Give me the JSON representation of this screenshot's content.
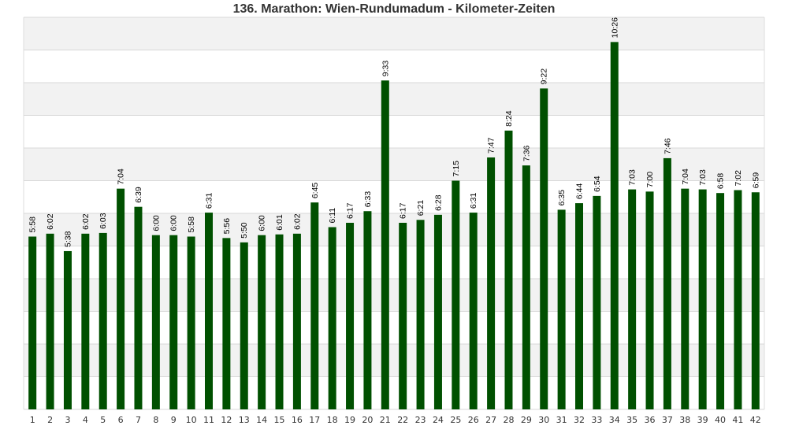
{
  "chart_data": {
    "type": "bar",
    "title": "136. Marathon: Wien-Rundumadum - Kilometer-Zeiten",
    "xlabel": "",
    "ylabel": "",
    "categories": [
      "1",
      "2",
      "3",
      "4",
      "5",
      "6",
      "7",
      "8",
      "9",
      "10",
      "11",
      "12",
      "13",
      "14",
      "15",
      "16",
      "17",
      "18",
      "19",
      "20",
      "21",
      "22",
      "23",
      "24",
      "25",
      "26",
      "27",
      "28",
      "29",
      "30",
      "31",
      "32",
      "33",
      "34",
      "35",
      "36",
      "37",
      "38",
      "39",
      "40",
      "41",
      "42"
    ],
    "labels": [
      "5:58",
      "6:02",
      "5:38",
      "6:02",
      "6:03",
      "7:04",
      "6:39",
      "6:00",
      "6:00",
      "5:58",
      "6:31",
      "5:56",
      "5:50",
      "6:00",
      "6:01",
      "6:02",
      "6:45",
      "6:11",
      "6:17",
      "6:33",
      "9:33",
      "6:17",
      "6:21",
      "6:28",
      "7:15",
      "6:31",
      "7:47",
      "8:24",
      "7:36",
      "9:22",
      "6:35",
      "6:44",
      "6:54",
      "10:26",
      "7:03",
      "7:00",
      "7:46",
      "7:04",
      "7:03",
      "6:58",
      "7:02",
      "6:59"
    ],
    "values": [
      358,
      362,
      338,
      362,
      363,
      424,
      399,
      360,
      360,
      358,
      391,
      356,
      350,
      360,
      361,
      362,
      405,
      371,
      377,
      393,
      573,
      377,
      381,
      388,
      435,
      391,
      467,
      504,
      456,
      562,
      395,
      404,
      414,
      626,
      423,
      420,
      466,
      424,
      423,
      418,
      422,
      419
    ],
    "value_unit": "seconds",
    "ylim": [
      120,
      660
    ],
    "bar_color": "#005000",
    "grid": true,
    "legend": "none"
  }
}
